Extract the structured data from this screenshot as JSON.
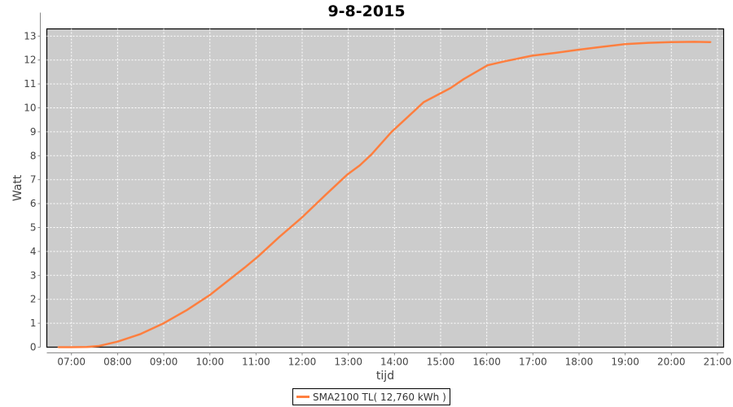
{
  "chart_data": {
    "type": "line",
    "title": "9-8-2015",
    "xlabel": "tijd",
    "ylabel": "Watt",
    "xlim": [
      "06:28",
      "21:08"
    ],
    "ylim": [
      0,
      13.3
    ],
    "x_ticks": [
      "07:00",
      "08:00",
      "09:00",
      "10:00",
      "11:00",
      "12:00",
      "13:00",
      "14:00",
      "15:00",
      "16:00",
      "17:00",
      "18:00",
      "19:00",
      "20:00",
      "21:00"
    ],
    "y_ticks": [
      0,
      1,
      2,
      3,
      4,
      5,
      6,
      7,
      8,
      9,
      10,
      11,
      12,
      13
    ],
    "grid": true,
    "legend": "bottom",
    "background": "#cccccc",
    "series": [
      {
        "name": "SMA2100 TL( 12,760 kWh )",
        "color": "#ff7f3f",
        "x": [
          "06:43",
          "07:00",
          "07:20",
          "07:36",
          "08:00",
          "08:30",
          "09:00",
          "09:30",
          "10:00",
          "10:45",
          "11:03",
          "11:30",
          "12:00",
          "12:30",
          "12:59",
          "13:15",
          "13:30",
          "13:56",
          "14:15",
          "14:38",
          "15:13",
          "15:30",
          "16:01",
          "16:24",
          "16:59",
          "17:30",
          "17:59",
          "18:30",
          "18:59",
          "19:30",
          "19:59",
          "20:30",
          "20:51"
        ],
        "y": [
          0,
          0,
          0.01,
          0.05,
          0.23,
          0.55,
          1.0,
          1.55,
          2.18,
          3.32,
          3.8,
          4.6,
          5.43,
          6.35,
          7.22,
          7.6,
          8.05,
          8.99,
          9.55,
          10.24,
          10.83,
          11.2,
          11.78,
          11.95,
          12.18,
          12.3,
          12.43,
          12.55,
          12.66,
          12.72,
          12.75,
          12.76,
          12.75
        ]
      }
    ]
  }
}
